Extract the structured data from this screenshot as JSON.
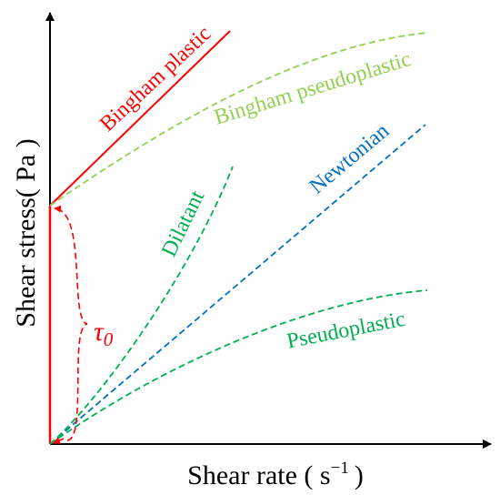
{
  "axes": {
    "x_title": "Shear rate ( s",
    "x_title_superscript": "−1",
    "x_title_close": ")",
    "y_title": "Shear stress( Pa )"
  },
  "curves": {
    "bingham_plastic": {
      "label": "Bingham plastic",
      "color": "#ff0000",
      "style": "solid"
    },
    "bingham_pseudoplastic": {
      "label": "Bingham pseudoplastic",
      "color": "#92d050",
      "style": "dashed"
    },
    "newtonian": {
      "label": "Newtonian",
      "color": "#0070c0",
      "style": "dashed"
    },
    "dilatant": {
      "label": "Dilatant",
      "color": "#00b050",
      "style": "dashed"
    },
    "pseudoplastic": {
      "label": "Pseudoplastic",
      "color": "#00b050",
      "style": "dashed"
    }
  },
  "yield_stress": {
    "symbol": "τ",
    "subscript": "0",
    "color": "#ff0000"
  }
}
